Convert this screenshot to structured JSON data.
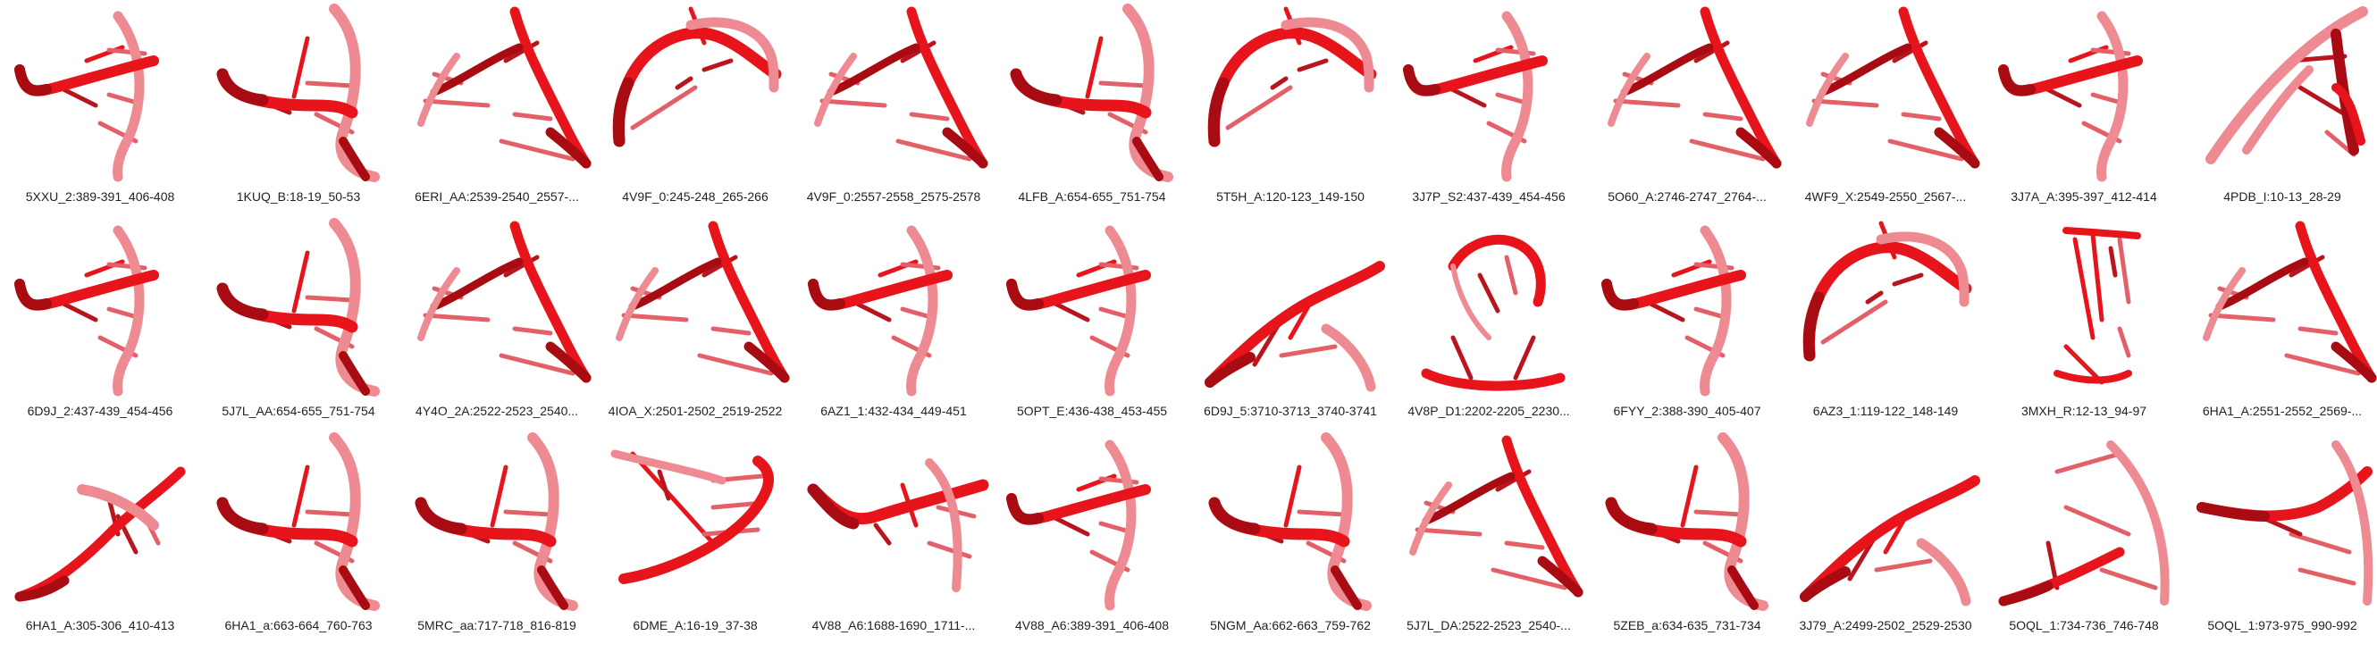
{
  "colors": {
    "background": "#ffffff",
    "strand_pale": "#ee8a92",
    "strand_bright": "#e8141c",
    "strand_dark": "#a80c12",
    "pair_light": "#e46068",
    "pair_dark": "#b8161e",
    "caption_text": "#222222"
  },
  "grid": {
    "rows": 3,
    "columns": 12
  },
  "panels": [
    {
      "label": "5XXU_2:389-391_406-408",
      "shape": 0,
      "mirror": false
    },
    {
      "label": "1KUQ_B:18-19_50-53",
      "shape": 1,
      "mirror": false
    },
    {
      "label": "6ERI_AA:2539-2540_2557-...",
      "shape": 2,
      "mirror": false
    },
    {
      "label": "4V9F_0:245-248_265-266",
      "shape": 3,
      "mirror": false
    },
    {
      "label": "4V9F_0:2557-2558_2575-2578",
      "shape": 2,
      "mirror": false
    },
    {
      "label": "4LFB_A:654-655_751-754",
      "shape": 1,
      "mirror": false
    },
    {
      "label": "5T5H_A:120-123_149-150",
      "shape": 3,
      "mirror": false
    },
    {
      "label": "3J7P_S2:437-439_454-456",
      "shape": 0,
      "mirror": false
    },
    {
      "label": "5O60_A:2746-2747_2764-...",
      "shape": 2,
      "mirror": false
    },
    {
      "label": "4WF9_X:2549-2550_2567-...",
      "shape": 2,
      "mirror": false
    },
    {
      "label": "3J7A_A:395-397_412-414",
      "shape": 0,
      "mirror": false
    },
    {
      "label": "4PDB_I:10-13_28-29",
      "shape": 4,
      "mirror": false
    },
    {
      "label": "6D9J_2:437-439_454-456",
      "shape": 0,
      "mirror": false
    },
    {
      "label": "5J7L_AA:654-655_751-754",
      "shape": 1,
      "mirror": false
    },
    {
      "label": "4Y4O_2A:2522-2523_2540...",
      "shape": 2,
      "mirror": false
    },
    {
      "label": "4IOA_X:2501-2502_2519-2522",
      "shape": 2,
      "mirror": false
    },
    {
      "label": "6AZ1_1:432-434_449-451",
      "shape": 0,
      "mirror": false
    },
    {
      "label": "5OPT_E:436-438_453-455",
      "shape": 0,
      "mirror": false
    },
    {
      "label": "6D9J_5:3710-3713_3740-3741",
      "shape": 5,
      "mirror": false
    },
    {
      "label": "4V8P_D1:2202-2205_2230...",
      "shape": 6,
      "mirror": false
    },
    {
      "label": "6FYY_2:388-390_405-407",
      "shape": 0,
      "mirror": false
    },
    {
      "label": "6AZ3_1:119-122_148-149",
      "shape": 3,
      "mirror": false
    },
    {
      "label": "3MXH_R:12-13_94-97",
      "shape": 7,
      "mirror": false
    },
    {
      "label": "6HA1_A:2551-2552_2569-...",
      "shape": 2,
      "mirror": false
    },
    {
      "label": "6HA1_A:305-306_410-413",
      "shape": 8,
      "mirror": false
    },
    {
      "label": "6HA1_a:663-664_760-763",
      "shape": 1,
      "mirror": false
    },
    {
      "label": "5MRC_aa:717-718_816-819",
      "shape": 1,
      "mirror": false
    },
    {
      "label": "6DME_A:16-19_37-38",
      "shape": 9,
      "mirror": false
    },
    {
      "label": "4V88_A6:1688-1690_1711-...",
      "shape": 10,
      "mirror": false
    },
    {
      "label": "4V88_A6:389-391_406-408",
      "shape": 0,
      "mirror": false
    },
    {
      "label": "5NGM_Aa:662-663_759-762",
      "shape": 1,
      "mirror": false
    },
    {
      "label": "5J7L_DA:2522-2523_2540-...",
      "shape": 2,
      "mirror": false
    },
    {
      "label": "5ZEB_a:634-635_731-734",
      "shape": 1,
      "mirror": false
    },
    {
      "label": "3J79_A:2499-2502_2529-2530",
      "shape": 5,
      "mirror": false
    },
    {
      "label": "5OQL_1:734-736_746-748",
      "shape": 11,
      "mirror": false
    },
    {
      "label": "5OQL_1:973-975_990-992",
      "shape": 12,
      "mirror": false
    }
  ]
}
